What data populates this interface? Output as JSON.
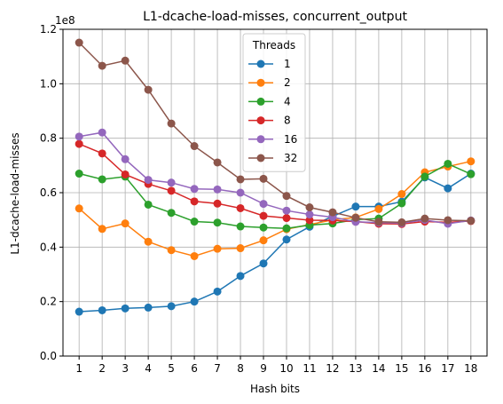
{
  "chart_data": {
    "type": "line",
    "title": "L1-dcache-load-misses, concurrent_output",
    "xlabel": "Hash bits",
    "ylabel": "L1-dcache-load-misses",
    "scale_label": "1e8",
    "x": [
      1,
      2,
      3,
      4,
      5,
      6,
      7,
      8,
      9,
      10,
      11,
      12,
      13,
      14,
      15,
      16,
      17,
      18
    ],
    "xlim": [
      0.3,
      18.7
    ],
    "ylim": [
      0,
      1.2
    ],
    "y_ticks": [
      "0.0",
      "0.2",
      "0.4",
      "0.6",
      "0.8",
      "1.0",
      "1.2"
    ],
    "grid": true,
    "legend": {
      "title": "Threads",
      "placement": "top-center"
    },
    "series": [
      {
        "name": "1",
        "color": "#1f77b4",
        "values": [
          0.163,
          0.168,
          0.175,
          0.178,
          0.183,
          0.2,
          0.237,
          0.294,
          0.34,
          0.428,
          0.475,
          0.513,
          0.549,
          0.549,
          0.567,
          0.656,
          0.616,
          0.67
        ]
      },
      {
        "name": "2",
        "color": "#ff7f0e",
        "values": [
          0.542,
          0.467,
          0.487,
          0.42,
          0.389,
          0.367,
          0.394,
          0.396,
          0.425,
          0.466,
          0.483,
          0.5,
          0.509,
          0.54,
          0.595,
          0.675,
          0.696,
          0.715
        ]
      },
      {
        "name": "4",
        "color": "#2ca02c",
        "values": [
          0.67,
          0.649,
          0.659,
          0.556,
          0.526,
          0.494,
          0.49,
          0.476,
          0.472,
          0.469,
          0.481,
          0.487,
          0.501,
          0.505,
          0.561,
          0.659,
          0.706,
          0.668
        ]
      },
      {
        "name": "8",
        "color": "#d62728",
        "values": [
          0.779,
          0.744,
          0.667,
          0.632,
          0.607,
          0.568,
          0.56,
          0.543,
          0.515,
          0.507,
          0.499,
          0.498,
          0.494,
          0.486,
          0.485,
          0.494,
          0.491,
          0.496
        ]
      },
      {
        "name": "16",
        "color": "#9467bd",
        "values": [
          0.806,
          0.821,
          0.723,
          0.647,
          0.637,
          0.614,
          0.612,
          0.6,
          0.559,
          0.534,
          0.52,
          0.51,
          0.493,
          0.49,
          0.488,
          0.5,
          0.486,
          0.498
        ]
      },
      {
        "name": "32",
        "color": "#8c564b",
        "values": [
          1.151,
          1.066,
          1.085,
          0.978,
          0.854,
          0.771,
          0.711,
          0.649,
          0.651,
          0.588,
          0.546,
          0.528,
          0.508,
          0.493,
          0.491,
          0.505,
          0.499,
          0.497
        ]
      }
    ]
  }
}
